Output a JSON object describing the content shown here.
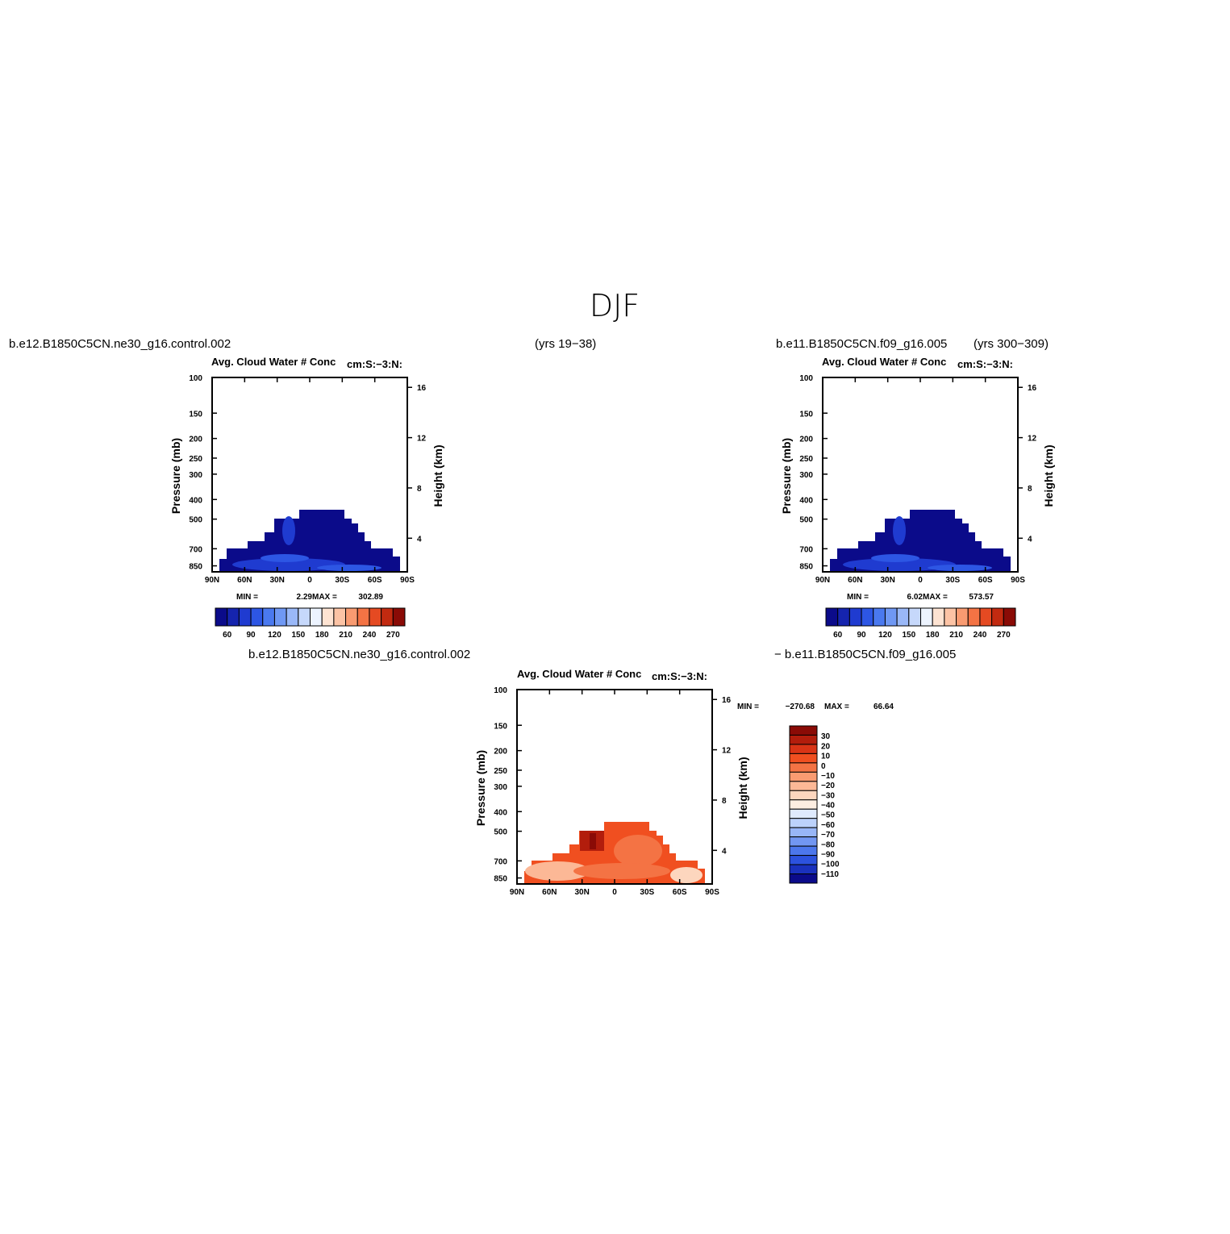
{
  "title": "DJF",
  "chart_data": [
    {
      "type": "contour",
      "case": "b.e12.B1850C5CN.ne30_g16.control.002",
      "years": "(yrs 19−38)",
      "title": "Avg. Cloud Water # Conc",
      "units": "cm:S:−3:N:",
      "ylabel": "Pressure (mb)",
      "y2label": "Height (km)",
      "xlim": [
        90,
        -90
      ],
      "xticks": [
        {
          "value": 90,
          "label": "90N"
        },
        {
          "value": 60,
          "label": "60N"
        },
        {
          "value": 30,
          "label": "30N"
        },
        0,
        {
          "value": -30,
          "label": "30S"
        },
        {
          "value": -60,
          "label": "60S"
        },
        {
          "value": -90,
          "label": "90S"
        }
      ],
      "ylim": [
        910,
        100
      ],
      "log_y": true,
      "yticks": [
        100,
        150,
        200,
        250,
        300,
        400,
        500,
        700,
        850
      ],
      "y2ticks": [
        4,
        8,
        12,
        16
      ],
      "stats": [
        {
          "name": "MIN =",
          "value": 2.29
        },
        {
          "name": "MAX =",
          "value": 302.89
        }
      ],
      "colorbar": {
        "orientation": "horizontal",
        "lim": [
          45,
          285
        ],
        "ticks": [
          60,
          90,
          120,
          150,
          180,
          210,
          240,
          270
        ],
        "colors": [
          "#0b0b8a",
          "#1524ae",
          "#1f3bd0",
          "#2d56e4",
          "#4a79ef",
          "#6f98f4",
          "#9ab8f8",
          "#c6d8fb",
          "#ecf3fe",
          "#fde3d2",
          "#fcc3a5",
          "#f99b71",
          "#f47344",
          "#e54a22",
          "#c22a10",
          "#8a0b06"
        ]
      }
    },
    {
      "type": "contour",
      "case": "b.e11.B1850C5CN.f09_g16.005",
      "years": "(yrs 300−309)",
      "title": "Avg. Cloud Water # Conc",
      "units": "cm:S:−3:N:",
      "ylabel": "Pressure (mb)",
      "y2label": "Height (km)",
      "xlim": [
        90,
        -90
      ],
      "xticks": [
        {
          "value": 90,
          "label": "90N"
        },
        {
          "value": 60,
          "label": "60N"
        },
        {
          "value": 30,
          "label": "30N"
        },
        0,
        {
          "value": -30,
          "label": "30S"
        },
        {
          "value": -60,
          "label": "60S"
        },
        {
          "value": -90,
          "label": "90S"
        }
      ],
      "ylim": [
        910,
        100
      ],
      "log_y": true,
      "yticks": [
        100,
        150,
        200,
        250,
        300,
        400,
        500,
        700,
        850
      ],
      "y2ticks": [
        4,
        8,
        12,
        16
      ],
      "stats": [
        {
          "name": "MIN =",
          "value": 6.02
        },
        {
          "name": "MAX =",
          "value": 573.57
        }
      ],
      "colorbar": {
        "orientation": "horizontal",
        "lim": [
          45,
          285
        ],
        "ticks": [
          60,
          90,
          120,
          150,
          180,
          210,
          240,
          270
        ],
        "colors": [
          "#0b0b8a",
          "#1524ae",
          "#1f3bd0",
          "#2d56e4",
          "#4a79ef",
          "#6f98f4",
          "#9ab8f8",
          "#c6d8fb",
          "#ecf3fe",
          "#fde3d2",
          "#fcc3a5",
          "#f99b71",
          "#f47344",
          "#e54a22",
          "#c22a10",
          "#8a0b06"
        ]
      }
    },
    {
      "type": "contour",
      "case": "b.e12.B1850C5CN.ne30_g16.control.002",
      "case2": "− b.e11.B1850C5CN.f09_g16.005",
      "title": "Avg. Cloud Water # Conc",
      "units": "cm:S:−3:N:",
      "ylabel": "Pressure (mb)",
      "y2label": "Height (km)",
      "xlim": [
        90,
        -90
      ],
      "xticks": [
        {
          "value": 90,
          "label": "90N"
        },
        {
          "value": 60,
          "label": "60N"
        },
        {
          "value": 30,
          "label": "30N"
        },
        0,
        {
          "value": -30,
          "label": "30S"
        },
        {
          "value": -60,
          "label": "60S"
        },
        {
          "value": -90,
          "label": "90S"
        }
      ],
      "ylim": [
        910,
        100
      ],
      "log_y": true,
      "yticks": [
        100,
        150,
        200,
        250,
        300,
        400,
        500,
        700,
        850
      ],
      "y2ticks": [
        4,
        8,
        12,
        16
      ],
      "stats": [
        {
          "name": "MIN =",
          "value": -270.68,
          "label": "−270.68"
        },
        {
          "name": "MAX =",
          "value": 66.64
        }
      ],
      "colorbar": {
        "orientation": "vertical",
        "lim": [
          40,
          -120
        ],
        "ticks": [
          30,
          20,
          10,
          0,
          {
            "value": -10,
            "label": "−10"
          },
          {
            "value": -20,
            "label": "−20"
          },
          {
            "value": -30,
            "label": "−30"
          },
          {
            "value": -40,
            "label": "−40"
          },
          {
            "value": -50,
            "label": "−50"
          },
          {
            "value": -60,
            "label": "−60"
          },
          {
            "value": -70,
            "label": "−70"
          },
          {
            "value": -80,
            "label": "−80"
          },
          {
            "value": -90,
            "label": "−90"
          },
          {
            "value": -100,
            "label": "−100"
          },
          {
            "value": -110,
            "label": "−110"
          }
        ],
        "colors": [
          "#8a0b06",
          "#b21d0c",
          "#d93416",
          "#f04f20",
          "#f47344",
          "#f99b71",
          "#fcb896",
          "#fdd6be",
          "#fdeee2",
          "#dfeafd",
          "#bcd2fb",
          "#98b6f7",
          "#7297f2",
          "#4c77ec",
          "#2c52de",
          "#1a31bd",
          "#0b0b8a"
        ]
      }
    }
  ]
}
